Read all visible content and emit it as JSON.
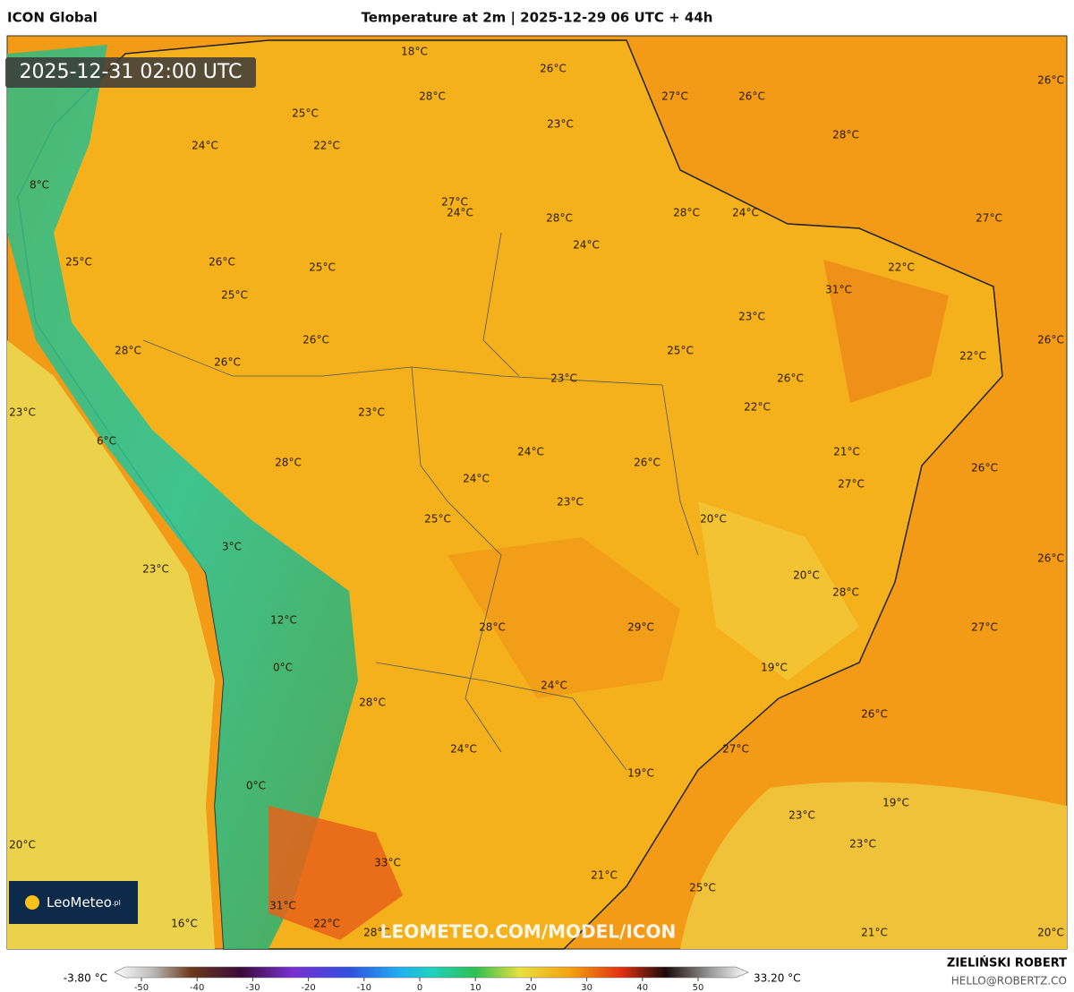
{
  "header": {
    "model": "ICON Global",
    "title": "Temperature at 2m | 2025-12-29 06 UTC + 44h"
  },
  "map": {
    "valid_time": "2025-12-31 02:00 UTC",
    "watermark": "LEOMETEO.COM/MODEL/ICON",
    "logo": "LeoMeteo",
    "logo_suffix": ".pl",
    "labels": [
      "18°C",
      "26°C",
      "27°C",
      "26°C",
      "26°C",
      "28°C",
      "25°C",
      "23°C",
      "28°C",
      "24°C",
      "22°C",
      "8°C",
      "27°C",
      "24°C",
      "28°C",
      "28°C",
      "24°C",
      "27°C",
      "24°C",
      "25°C",
      "26°C",
      "22°C",
      "25°C",
      "25°C",
      "31°C",
      "23°C",
      "26°C",
      "28°C",
      "25°C",
      "26°C",
      "22°C",
      "26°C",
      "23°C",
      "26°C",
      "22°C",
      "23°C",
      "23°C",
      "6°C",
      "24°C",
      "21°C",
      "26°C",
      "28°C",
      "26°C",
      "27°C",
      "24°C",
      "23°C",
      "20°C",
      "25°C",
      "3°C",
      "26°C",
      "23°C",
      "20°C",
      "28°C",
      "12°C",
      "28°C",
      "29°C",
      "27°C",
      "0°C",
      "19°C",
      "24°C",
      "28°C",
      "26°C",
      "24°C",
      "27°C",
      "19°C",
      "0°C",
      "19°C",
      "23°C",
      "20°C",
      "23°C",
      "33°C",
      "21°C",
      "25°C",
      "16°C",
      "31°C",
      "22°C",
      "28°C",
      "21°C",
      "20°C"
    ]
  },
  "legend": {
    "min": "-3.80 °C",
    "max": "33.20 °C",
    "ticks": [
      "-50",
      "-40",
      "-30",
      "-20",
      "-10",
      "0",
      "10",
      "20",
      "30",
      "40",
      "50"
    ]
  },
  "footer": {
    "author": "ZIELIŃSKI ROBERT",
    "email": "HELLO@ROBERTZ.CO"
  }
}
